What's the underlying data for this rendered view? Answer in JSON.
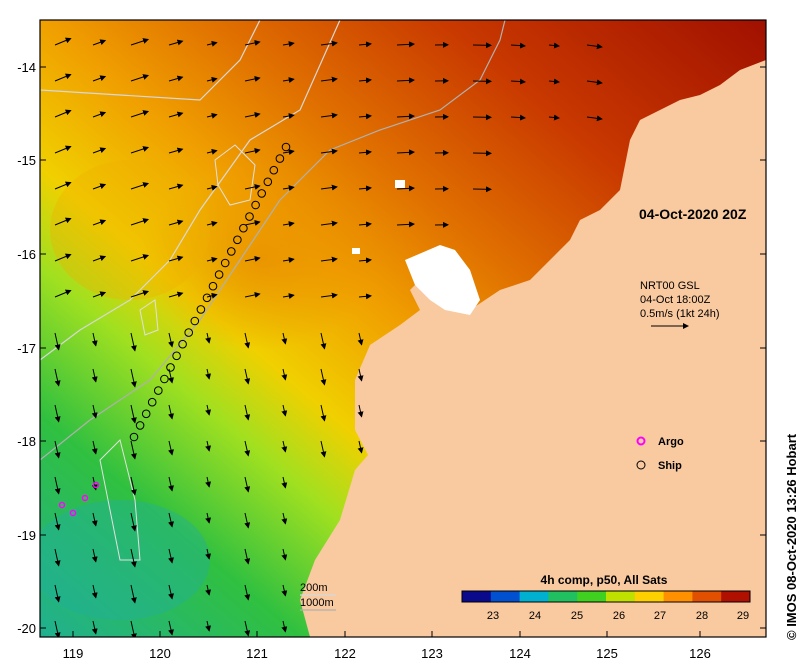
{
  "map": {
    "timestamp_label": "04-Oct-2020 20Z",
    "current_vectors": {
      "line1": "NRT00 GSL",
      "line2": "04-Oct 18:00Z",
      "line3": "0.5m/s (1kt 24h)"
    },
    "legend": {
      "argo_label": "Argo",
      "ship_label": "Ship",
      "argo_color": "#ff00ff",
      "ship_color": "#000000"
    },
    "contours": {
      "label1": "200m",
      "label2": "1000m"
    },
    "colorbar": {
      "title": "4h comp, p50, All Sats",
      "ticks": [
        "23",
        "24",
        "25",
        "26",
        "27",
        "28",
        "29"
      ],
      "colors": [
        "#0a0a8c",
        "#0050d0",
        "#00b0d0",
        "#20c060",
        "#40d020",
        "#c0e000",
        "#ffd000",
        "#ff9000",
        "#e05000",
        "#b01000"
      ]
    },
    "axes": {
      "lon_ticks": [
        "119",
        "120",
        "121",
        "122",
        "123",
        "124",
        "125",
        "126"
      ],
      "lat_ticks": [
        "-14",
        "-15",
        "-16",
        "-17",
        "-18",
        "-19",
        "-20"
      ]
    },
    "colors": {
      "land": "#f9c9a0",
      "frame": "#000000"
    },
    "credit": "© IMOS 08-Oct-2020 13:26 Hobart"
  }
}
